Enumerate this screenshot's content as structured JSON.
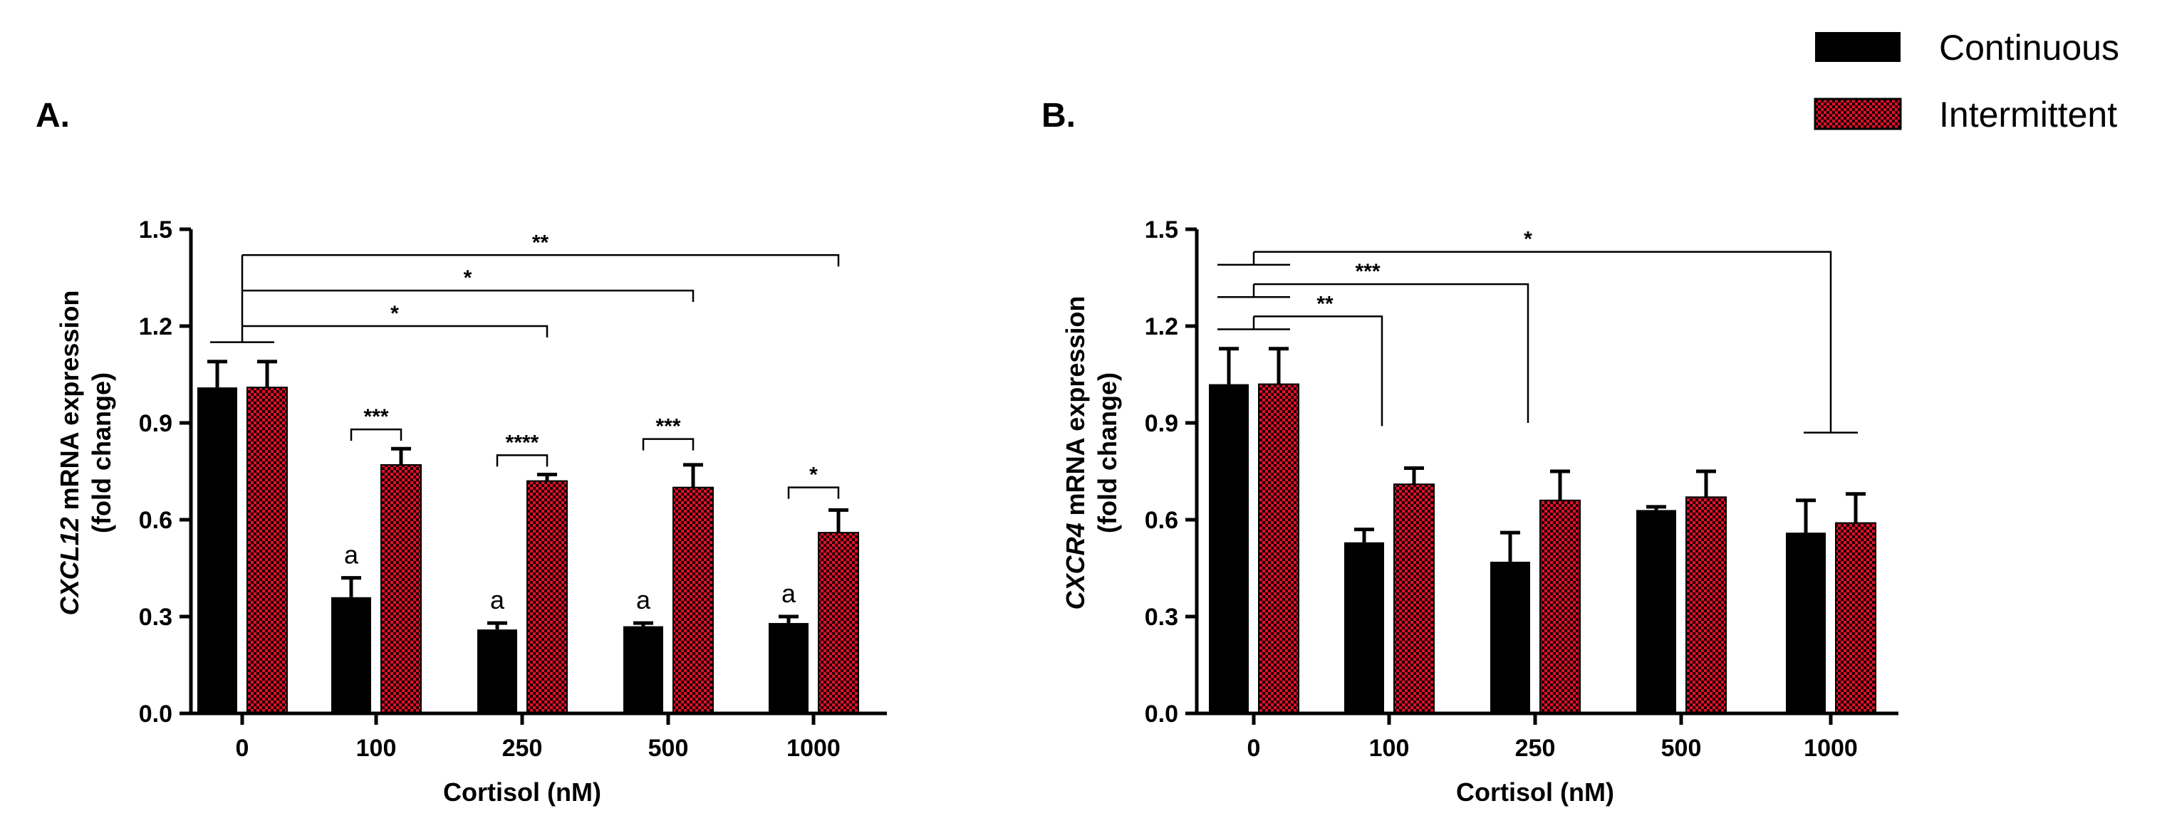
{
  "chart_data": [
    {
      "panel": "A.",
      "type": "bar",
      "title": "",
      "xlabel": "Cortisol (nM)",
      "ylabel_gene": "CXCL12",
      "ylabel_rest": " mRNA expression",
      "ylabel_line2": "(fold change)",
      "ylim": [
        0,
        1.5
      ],
      "yticks": [
        "0.0",
        "0.3",
        "0.6",
        "0.9",
        "1.2",
        "1.5"
      ],
      "categories": [
        "0",
        "100",
        "250",
        "500",
        "1000"
      ],
      "series": [
        {
          "name": "Continuous",
          "values": [
            1.01,
            0.36,
            0.26,
            0.27,
            0.28
          ],
          "errors": [
            0.08,
            0.06,
            0.02,
            0.01,
            0.02
          ]
        },
        {
          "name": "Intermittent",
          "values": [
            1.01,
            0.77,
            0.72,
            0.7,
            0.56
          ],
          "errors": [
            0.08,
            0.05,
            0.02,
            0.07,
            0.07
          ]
        }
      ],
      "letter_marks": [
        {
          "category": 1,
          "series": 0,
          "text": "a"
        },
        {
          "category": 2,
          "series": 0,
          "text": "a"
        },
        {
          "category": 3,
          "series": 0,
          "text": "a"
        },
        {
          "category": 4,
          "series": 0,
          "text": "a"
        }
      ],
      "within_group_sig": [
        {
          "category": 1,
          "label": "***",
          "y": 0.88
        },
        {
          "category": 2,
          "label": "****",
          "y": 0.8
        },
        {
          "category": 3,
          "label": "***",
          "y": 0.85
        },
        {
          "category": 4,
          "label": "*",
          "y": 0.7
        }
      ],
      "between_group_sig": [
        {
          "from": 0,
          "to": 2,
          "label": "*",
          "y": 1.2
        },
        {
          "from": 0,
          "to": 3,
          "label": "*",
          "y": 1.31
        },
        {
          "from": 0,
          "to": 4,
          "label": "**",
          "y": 1.42
        }
      ]
    },
    {
      "panel": "B.",
      "type": "bar",
      "title": "",
      "xlabel": "Cortisol (nM)",
      "ylabel_gene": "CXCR4",
      "ylabel_rest": " mRNA expression",
      "ylabel_line2": "(fold change)",
      "ylim": [
        0,
        1.5
      ],
      "yticks": [
        "0.0",
        "0.3",
        "0.6",
        "0.9",
        "1.2",
        "1.5"
      ],
      "categories": [
        "0",
        "100",
        "250",
        "500",
        "1000"
      ],
      "series": [
        {
          "name": "Continuous",
          "values": [
            1.02,
            0.53,
            0.47,
            0.63,
            0.56
          ],
          "errors": [
            0.11,
            0.04,
            0.09,
            0.01,
            0.1
          ]
        },
        {
          "name": "Intermittent",
          "values": [
            1.02,
            0.71,
            0.66,
            0.67,
            0.59
          ],
          "errors": [
            0.11,
            0.05,
            0.09,
            0.08,
            0.09
          ]
        }
      ],
      "between_group_sig": [
        {
          "to": 1,
          "label": "**",
          "y": 1.23
        },
        {
          "to": 2,
          "label": "***",
          "y": 1.33
        },
        {
          "to": 4,
          "label": "*",
          "y": 1.43
        }
      ]
    }
  ],
  "legend": {
    "items": [
      {
        "label": "Continuous",
        "color": "#000000"
      },
      {
        "label": "Intermittent",
        "color": "#e0102a"
      }
    ]
  },
  "colors": {
    "continuous": "#000000",
    "intermittent_fill": "#e0102a",
    "intermittent_check": "#000000"
  }
}
